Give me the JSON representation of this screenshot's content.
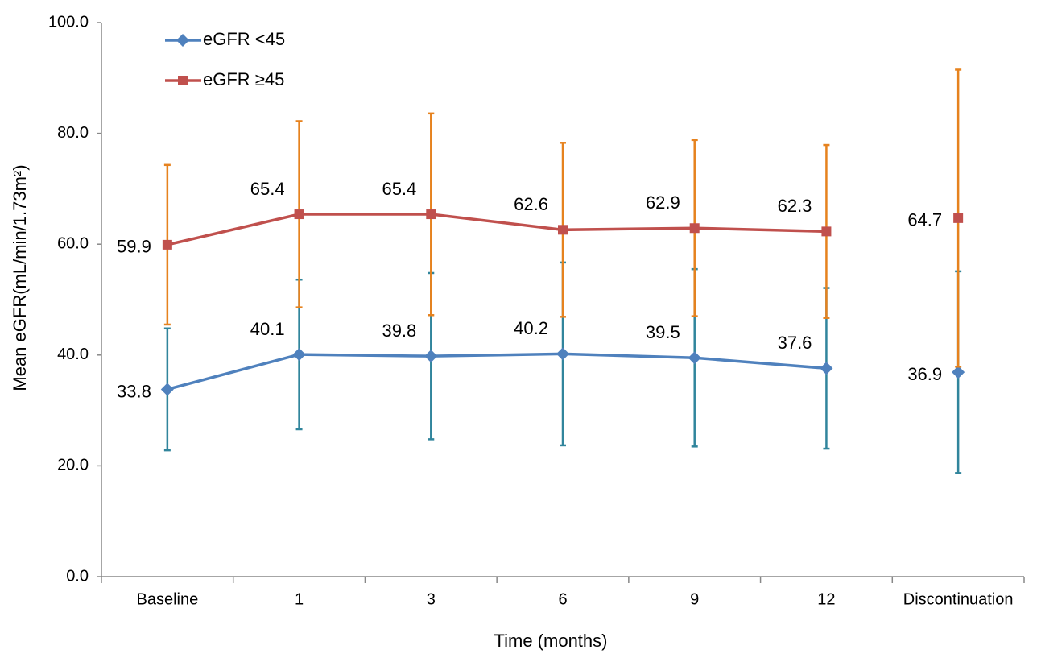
{
  "chart_data": {
    "type": "line",
    "y_label": "Mean eGFR(mL/min/1.73m²)",
    "x_label": "Time (months)",
    "categories": [
      "Baseline",
      "1",
      "3",
      "6",
      "9",
      "12",
      "Discontinuation"
    ],
    "joined": [
      true,
      true,
      true,
      true,
      true,
      true,
      false
    ],
    "ylim": [
      0,
      100
    ],
    "yticks": [
      {
        "value": 0,
        "label": "0.0"
      },
      {
        "value": 20,
        "label": "20.0"
      },
      {
        "value": 40,
        "label": "40.0"
      },
      {
        "value": 60,
        "label": "60.0"
      },
      {
        "value": 80,
        "label": "80.0"
      },
      {
        "value": 100,
        "label": "100.0"
      }
    ],
    "legend": "top-left",
    "series": [
      {
        "name": "eGFR <45",
        "color": "#4f81bd",
        "marker": "diamond",
        "error_color": "#31859c",
        "values": [
          33.8,
          40.1,
          39.8,
          40.2,
          39.5,
          37.6,
          36.9
        ],
        "errors": [
          11.0,
          13.5,
          15.0,
          16.5,
          16.0,
          14.5,
          18.2
        ]
      },
      {
        "name": "eGFR ≥45",
        "color": "#c0504d",
        "marker": "square",
        "error_color": "#e6821e",
        "values": [
          59.9,
          65.4,
          65.4,
          62.6,
          62.9,
          62.3,
          64.7
        ],
        "errors": [
          14.4,
          16.8,
          18.2,
          15.7,
          15.9,
          15.6,
          26.8
        ]
      }
    ]
  }
}
